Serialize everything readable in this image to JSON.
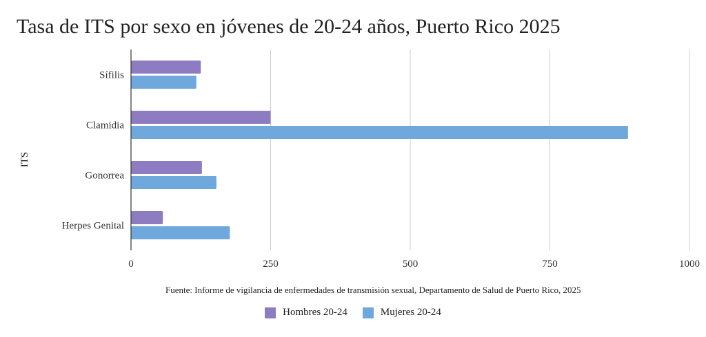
{
  "chart_data": {
    "type": "bar",
    "orientation": "horizontal",
    "title": "Tasa de ITS por sexo en jóvenes de 20-24 años, Puerto Rico 2025",
    "xlabel": "",
    "ylabel": "ITS",
    "categories": [
      "Sífilis",
      "Clamidia",
      "Gonorrea",
      "Herpes Genital"
    ],
    "series": [
      {
        "name": "Hombres 20-24",
        "color": "#8e7cc3",
        "values": [
          125,
          250,
          127,
          57
        ]
      },
      {
        "name": "Mujeres 20-24",
        "color": "#6fa8dc",
        "values": [
          117,
          890,
          153,
          177
        ]
      }
    ],
    "xlim": [
      0,
      1000
    ],
    "xticks": [
      0,
      250,
      500,
      750,
      1000
    ],
    "xtick_labels": [
      "0",
      "250",
      "500",
      "750",
      "1000"
    ],
    "grid": true,
    "legend_position": "bottom-center",
    "source": "Fuente: Informe de vigilancia de enfermedades de transmisión sexual, Departamento de Salud de Puerto Rico, 2025"
  }
}
